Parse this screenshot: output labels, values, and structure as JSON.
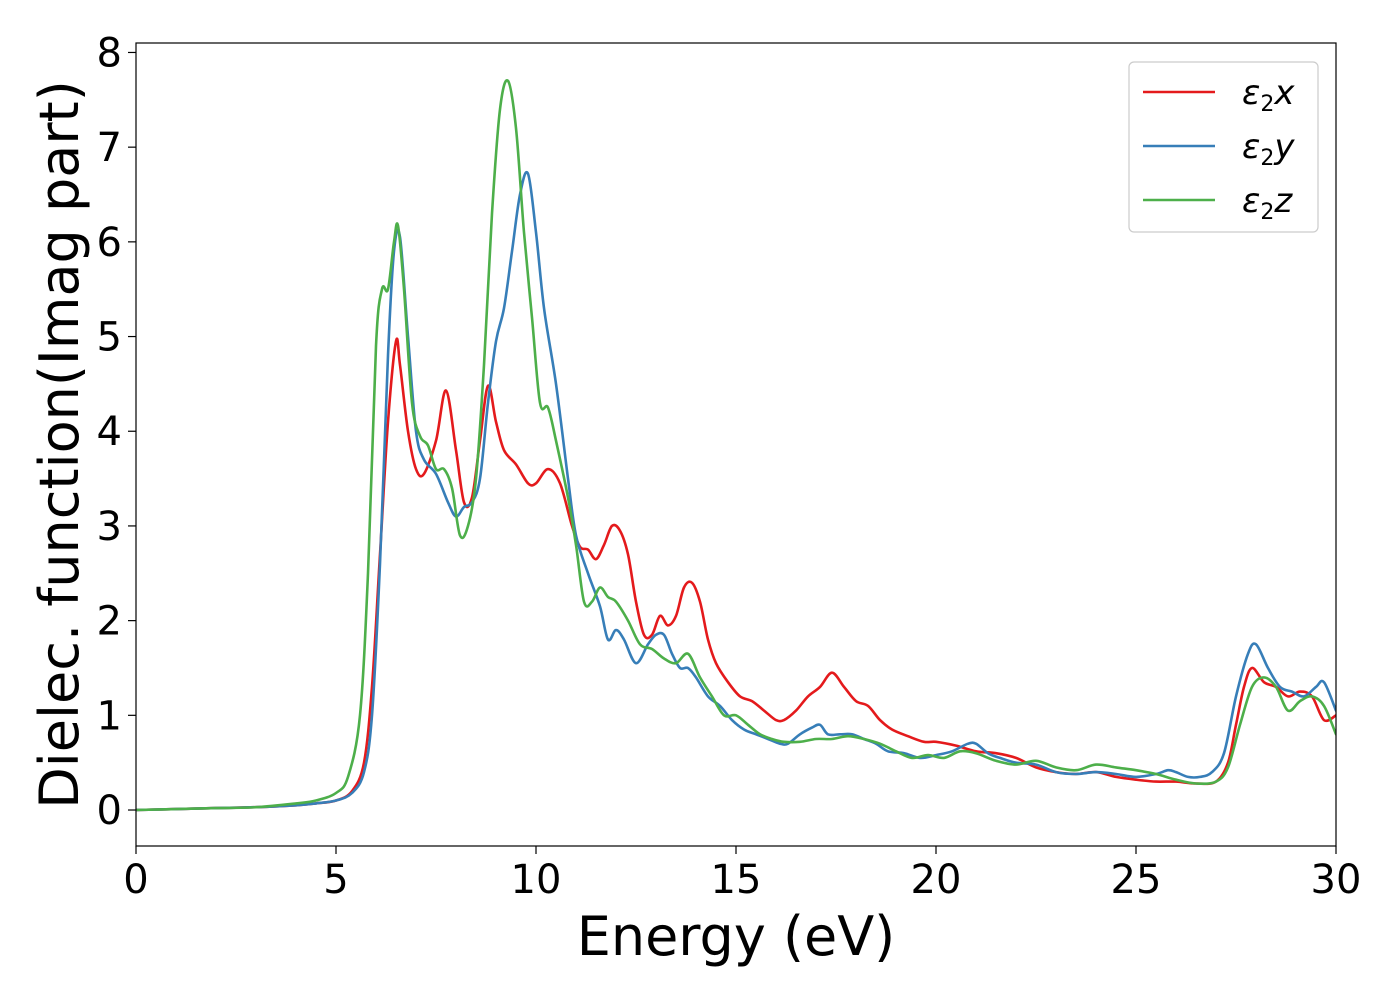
{
  "chart_data": {
    "type": "line",
    "title": "",
    "xlabel": "Energy (eV)",
    "ylabel": "Dielec. function(Imag part)",
    "xlim": [
      0,
      30
    ],
    "ylim": [
      -0.38,
      8.1
    ],
    "xticks": [
      0,
      5,
      10,
      15,
      20,
      25,
      30
    ],
    "yticks": [
      0,
      1,
      2,
      3,
      4,
      5,
      6,
      7,
      8
    ],
    "grid": false,
    "legend_position": "top-right",
    "series": [
      {
        "name": "ε2x",
        "label_main": "ε",
        "label_sub": "2",
        "label_axis": "x",
        "color": "#e41a1c",
        "x": [
          0,
          1,
          2,
          3,
          4,
          4.5,
          5,
          5.4,
          5.7,
          5.9,
          6.1,
          6.3,
          6.5,
          6.6,
          6.8,
          7.0,
          7.2,
          7.5,
          7.75,
          8.0,
          8.2,
          8.4,
          8.6,
          8.8,
          9.0,
          9.2,
          9.5,
          9.8,
          10.0,
          10.3,
          10.6,
          10.9,
          11.1,
          11.3,
          11.5,
          11.7,
          11.9,
          12.1,
          12.3,
          12.5,
          12.7,
          12.9,
          13.1,
          13.3,
          13.5,
          13.7,
          13.9,
          14.1,
          14.3,
          14.5,
          14.8,
          15.1,
          15.4,
          15.7,
          16.0,
          16.2,
          16.5,
          16.8,
          17.1,
          17.4,
          17.7,
          18.0,
          18.3,
          18.6,
          18.9,
          19.3,
          19.7,
          20.0,
          20.5,
          21.0,
          21.5,
          22.0,
          22.5,
          23.0,
          23.5,
          24.0,
          24.5,
          25.0,
          25.5,
          26.0,
          26.5,
          27.0,
          27.3,
          27.5,
          27.7,
          27.9,
          28.2,
          28.5,
          28.8,
          29.1,
          29.4,
          29.7,
          30.0
        ],
        "y": [
          0.0,
          0.01,
          0.02,
          0.03,
          0.05,
          0.07,
          0.1,
          0.2,
          0.5,
          1.3,
          2.7,
          4.1,
          4.95,
          4.7,
          4.0,
          3.6,
          3.55,
          3.9,
          4.43,
          3.8,
          3.25,
          3.3,
          3.9,
          4.48,
          4.1,
          3.8,
          3.65,
          3.45,
          3.45,
          3.6,
          3.45,
          3.0,
          2.78,
          2.75,
          2.65,
          2.8,
          3.0,
          2.95,
          2.7,
          2.2,
          1.85,
          1.85,
          2.05,
          1.95,
          2.05,
          2.35,
          2.4,
          2.2,
          1.8,
          1.55,
          1.35,
          1.2,
          1.15,
          1.05,
          0.95,
          0.95,
          1.05,
          1.2,
          1.3,
          1.45,
          1.3,
          1.15,
          1.1,
          0.95,
          0.85,
          0.78,
          0.72,
          0.72,
          0.68,
          0.62,
          0.6,
          0.55,
          0.45,
          0.4,
          0.38,
          0.4,
          0.35,
          0.32,
          0.3,
          0.3,
          0.28,
          0.3,
          0.5,
          0.9,
          1.3,
          1.5,
          1.35,
          1.3,
          1.2,
          1.25,
          1.2,
          0.95,
          1.0
        ]
      },
      {
        "name": "ε2y",
        "label_main": "ε",
        "label_sub": "2",
        "label_axis": "y",
        "color": "#377eb8",
        "x": [
          0,
          1,
          2,
          3,
          4,
          4.5,
          5,
          5.4,
          5.7,
          5.9,
          6.1,
          6.3,
          6.45,
          6.6,
          6.8,
          7.0,
          7.2,
          7.5,
          7.8,
          8.0,
          8.2,
          8.4,
          8.6,
          8.8,
          9.0,
          9.2,
          9.4,
          9.6,
          9.8,
          10.0,
          10.2,
          10.5,
          10.8,
          11.0,
          11.3,
          11.6,
          11.8,
          12.0,
          12.2,
          12.5,
          12.8,
          13.0,
          13.2,
          13.4,
          13.6,
          13.8,
          14.0,
          14.3,
          14.6,
          14.9,
          15.2,
          15.5,
          15.8,
          16.1,
          16.3,
          16.6,
          16.9,
          17.1,
          17.3,
          17.6,
          17.9,
          18.2,
          18.5,
          18.8,
          19.2,
          19.6,
          20.0,
          20.4,
          20.8,
          21.0,
          21.3,
          21.6,
          22.0,
          22.5,
          23.0,
          23.5,
          24.0,
          24.5,
          25.0,
          25.5,
          25.8,
          26.0,
          26.3,
          26.6,
          26.9,
          27.2,
          27.5,
          27.8,
          28.0,
          28.3,
          28.6,
          28.9,
          29.2,
          29.5,
          29.7,
          30.0
        ],
        "y": [
          0.0,
          0.01,
          0.02,
          0.03,
          0.05,
          0.07,
          0.1,
          0.18,
          0.4,
          1.0,
          2.6,
          4.8,
          5.9,
          6.05,
          5.0,
          4.0,
          3.7,
          3.55,
          3.25,
          3.1,
          3.2,
          3.25,
          3.5,
          4.3,
          4.95,
          5.3,
          5.9,
          6.5,
          6.72,
          6.1,
          5.3,
          4.5,
          3.5,
          2.9,
          2.5,
          2.15,
          1.8,
          1.9,
          1.8,
          1.55,
          1.75,
          1.85,
          1.85,
          1.65,
          1.5,
          1.5,
          1.4,
          1.2,
          1.1,
          0.95,
          0.85,
          0.8,
          0.75,
          0.7,
          0.7,
          0.8,
          0.87,
          0.9,
          0.8,
          0.8,
          0.8,
          0.75,
          0.7,
          0.62,
          0.6,
          0.55,
          0.58,
          0.62,
          0.7,
          0.7,
          0.6,
          0.55,
          0.5,
          0.48,
          0.4,
          0.38,
          0.4,
          0.38,
          0.35,
          0.38,
          0.42,
          0.4,
          0.35,
          0.35,
          0.4,
          0.6,
          1.2,
          1.65,
          1.75,
          1.5,
          1.3,
          1.25,
          1.2,
          1.3,
          1.35,
          1.05
        ]
      },
      {
        "name": "ε2z",
        "label_main": "ε",
        "label_sub": "2",
        "label_axis": "z",
        "color": "#4daf4a",
        "x": [
          0,
          1,
          2,
          3,
          4,
          4.5,
          5,
          5.3,
          5.6,
          5.8,
          6.0,
          6.15,
          6.3,
          6.45,
          6.55,
          6.7,
          6.9,
          7.1,
          7.3,
          7.5,
          7.7,
          7.9,
          8.1,
          8.3,
          8.5,
          8.7,
          8.9,
          9.1,
          9.3,
          9.5,
          9.7,
          9.9,
          10.1,
          10.3,
          10.5,
          10.8,
          11.0,
          11.2,
          11.4,
          11.6,
          11.8,
          12.0,
          12.3,
          12.6,
          12.9,
          13.2,
          13.5,
          13.8,
          14.1,
          14.4,
          14.7,
          15.0,
          15.3,
          15.6,
          15.9,
          16.2,
          16.6,
          17.0,
          17.4,
          17.8,
          18.2,
          18.6,
          19.0,
          19.4,
          19.8,
          20.2,
          20.6,
          21.0,
          21.5,
          22.0,
          22.5,
          23.0,
          23.5,
          24.0,
          24.5,
          25.0,
          25.5,
          26.0,
          26.5,
          27.0,
          27.3,
          27.6,
          27.9,
          28.2,
          28.5,
          28.8,
          29.1,
          29.4,
          29.7,
          30.0
        ],
        "y": [
          0.0,
          0.01,
          0.02,
          0.03,
          0.07,
          0.1,
          0.18,
          0.35,
          1.0,
          2.5,
          4.9,
          5.5,
          5.5,
          6.0,
          6.17,
          5.5,
          4.3,
          3.95,
          3.85,
          3.6,
          3.6,
          3.4,
          2.9,
          3.0,
          3.5,
          4.7,
          6.3,
          7.4,
          7.7,
          7.2,
          6.1,
          5.2,
          4.3,
          4.25,
          3.9,
          3.3,
          2.8,
          2.2,
          2.2,
          2.35,
          2.25,
          2.2,
          2.0,
          1.75,
          1.7,
          1.6,
          1.55,
          1.65,
          1.4,
          1.2,
          1.0,
          1.0,
          0.9,
          0.8,
          0.75,
          0.72,
          0.72,
          0.75,
          0.75,
          0.78,
          0.75,
          0.7,
          0.62,
          0.55,
          0.58,
          0.55,
          0.62,
          0.6,
          0.52,
          0.48,
          0.52,
          0.45,
          0.42,
          0.48,
          0.45,
          0.42,
          0.38,
          0.32,
          0.28,
          0.3,
          0.45,
          0.9,
          1.3,
          1.4,
          1.3,
          1.05,
          1.15,
          1.2,
          1.1,
          0.8
        ]
      }
    ]
  }
}
